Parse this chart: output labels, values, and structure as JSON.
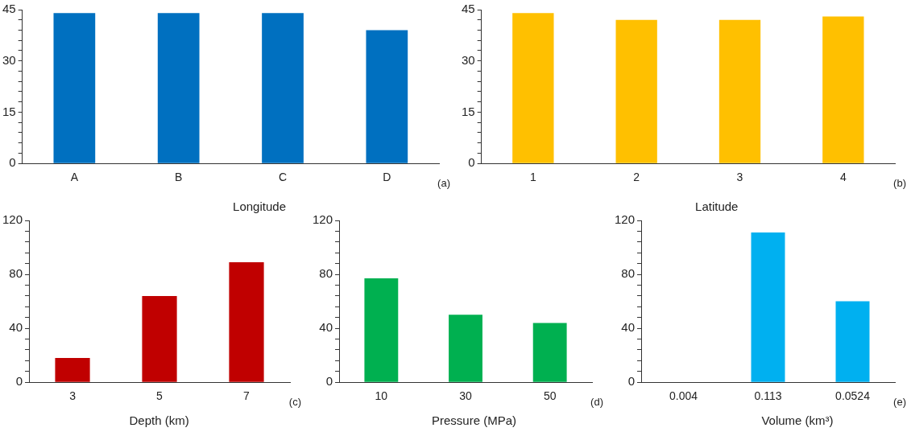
{
  "chart_data": [
    {
      "type": "bar",
      "xlabel": "Longitude",
      "categories": [
        "A",
        "B",
        "C",
        "D"
      ],
      "values": [
        44,
        44,
        44,
        39
      ],
      "color": "#0070c0",
      "ylim": [
        0,
        45
      ],
      "yticks": [
        0,
        {
          "value": 3,
          "label": null
        },
        {
          "value": 6,
          "label": null
        },
        {
          "value": 9,
          "label": null
        },
        {
          "value": 12,
          "label": null
        },
        15,
        {
          "value": 18,
          "label": null
        },
        {
          "value": 21,
          "label": null
        },
        {
          "value": 24,
          "label": null
        },
        {
          "value": 27,
          "label": null
        },
        30,
        {
          "value": 33,
          "label": null
        },
        {
          "value": 36,
          "label": null
        },
        {
          "value": 39,
          "label": null
        },
        {
          "value": 42,
          "label": null
        },
        45
      ],
      "grid": false,
      "annotations": [
        "(a)"
      ]
    },
    {
      "type": "bar",
      "xlabel": "Latitude",
      "categories": [
        "1",
        "2",
        "3",
        "4"
      ],
      "values": [
        44,
        42,
        42,
        43
      ],
      "color": "#ffc000",
      "ylim": [
        0,
        45
      ],
      "yticks": [
        0,
        {
          "value": 3,
          "label": null
        },
        {
          "value": 6,
          "label": null
        },
        {
          "value": 9,
          "label": null
        },
        {
          "value": 12,
          "label": null
        },
        15,
        {
          "value": 18,
          "label": null
        },
        {
          "value": 21,
          "label": null
        },
        {
          "value": 24,
          "label": null
        },
        {
          "value": 27,
          "label": null
        },
        30,
        {
          "value": 33,
          "label": null
        },
        {
          "value": 36,
          "label": null
        },
        {
          "value": 39,
          "label": null
        },
        {
          "value": 42,
          "label": null
        },
        45
      ],
      "grid": false,
      "annotations": [
        "(b)"
      ]
    },
    {
      "type": "bar",
      "xlabel": "Depth (km)",
      "categories": [
        "3",
        "5",
        "7"
      ],
      "values": [
        18,
        64,
        89
      ],
      "color": "#c00000",
      "ylim": [
        0,
        120
      ],
      "yticks": [
        0,
        {
          "value": 8,
          "label": null
        },
        {
          "value": 16,
          "label": null
        },
        {
          "value": 24,
          "label": null
        },
        {
          "value": 32,
          "label": null
        },
        40,
        {
          "value": 48,
          "label": null
        },
        {
          "value": 56,
          "label": null
        },
        {
          "value": 64,
          "label": null
        },
        {
          "value": 72,
          "label": null
        },
        80,
        {
          "value": 88,
          "label": null
        },
        {
          "value": 96,
          "label": null
        },
        {
          "value": 104,
          "label": null
        },
        {
          "value": 112,
          "label": null
        },
        120
      ],
      "grid": false,
      "annotations": [
        "(c)"
      ]
    },
    {
      "type": "bar",
      "xlabel": "Pressure (MPa)",
      "categories": [
        "10",
        "30",
        "50"
      ],
      "values": [
        77,
        50,
        44
      ],
      "color": "#00b050",
      "ylim": [
        0,
        120
      ],
      "yticks": [
        0,
        {
          "value": 8,
          "label": null
        },
        {
          "value": 16,
          "label": null
        },
        {
          "value": 24,
          "label": null
        },
        {
          "value": 32,
          "label": null
        },
        40,
        {
          "value": 48,
          "label": null
        },
        {
          "value": 56,
          "label": null
        },
        {
          "value": 64,
          "label": null
        },
        {
          "value": 72,
          "label": null
        },
        80,
        {
          "value": 88,
          "label": null
        },
        {
          "value": 96,
          "label": null
        },
        {
          "value": 104,
          "label": null
        },
        {
          "value": 112,
          "label": null
        },
        120
      ],
      "grid": false,
      "annotations": [
        "(d)"
      ]
    },
    {
      "type": "bar",
      "xlabel": "Volume (km³)",
      "categories": [
        "0.004",
        "0.113",
        "0.0524"
      ],
      "values": [
        0,
        111,
        60
      ],
      "color": "#00b0f0",
      "ylim": [
        0,
        120
      ],
      "yticks": [
        0,
        {
          "value": 8,
          "label": null
        },
        {
          "value": 16,
          "label": null
        },
        {
          "value": 24,
          "label": null
        },
        {
          "value": 32,
          "label": null
        },
        40,
        {
          "value": 48,
          "label": null
        },
        {
          "value": 56,
          "label": null
        },
        {
          "value": 64,
          "label": null
        },
        {
          "value": 72,
          "label": null
        },
        80,
        {
          "value": 88,
          "label": null
        },
        {
          "value": 96,
          "label": null
        },
        {
          "value": 104,
          "label": null
        },
        {
          "value": 112,
          "label": null
        },
        120
      ],
      "grid": false,
      "annotations": [
        "(e)"
      ]
    }
  ]
}
